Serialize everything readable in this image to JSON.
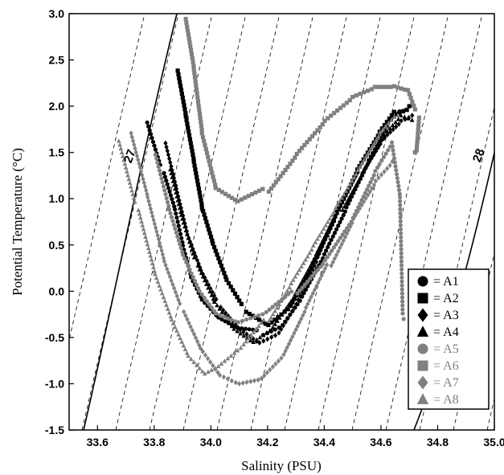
{
  "chart_data": {
    "type": "scatter",
    "title": "",
    "xlabel": "Salinity (PSU)",
    "ylabel": "Potential Temperature (°C)",
    "xlim": [
      33.5,
      35.0
    ],
    "ylim": [
      -1.5,
      3.0
    ],
    "x_ticks": [
      "33.6",
      "33.8",
      "34.0",
      "34.2",
      "34.4",
      "34.6",
      "34.8",
      "35.0"
    ],
    "y_ticks": [
      "3.0",
      "2.5",
      "2.0",
      "1.5",
      "1.0",
      "0.5",
      "0.0",
      "-0.5",
      "-1.0",
      "-1.5"
    ],
    "isopycnal_labels": [
      "27",
      "28"
    ],
    "legend_placement": "lower-right",
    "colors": {
      "black": "#000000",
      "gray": "#808080"
    },
    "series": [
      {
        "name": "A1",
        "marker": "circle",
        "color": "#000000",
        "x": [
          33.78,
          33.83,
          33.87,
          33.9,
          33.93,
          33.97,
          34.03,
          34.1,
          34.18,
          34.25,
          34.32,
          34.4,
          34.48,
          34.56,
          34.63,
          34.68
        ],
        "y": [
          1.8,
          1.3,
          0.9,
          0.5,
          0.15,
          -0.1,
          -0.3,
          -0.42,
          -0.45,
          -0.35,
          -0.05,
          0.4,
          0.9,
          1.4,
          1.8,
          1.95
        ]
      },
      {
        "name": "A2",
        "marker": "square",
        "color": "#000000",
        "x": [
          33.88,
          33.91,
          33.94,
          33.97,
          34.01,
          34.06,
          34.12,
          34.2,
          34.28,
          34.36,
          34.44,
          34.52,
          34.6,
          34.66,
          34.7
        ],
        "y": [
          2.4,
          1.9,
          1.4,
          0.9,
          0.5,
          0.1,
          -0.2,
          -0.35,
          -0.15,
          0.3,
          0.8,
          1.3,
          1.7,
          1.95,
          2.0
        ]
      },
      {
        "name": "A3",
        "marker": "diamond",
        "color": "#000000",
        "x": [
          33.84,
          33.88,
          33.92,
          33.97,
          34.03,
          34.1,
          34.17,
          34.24,
          34.31,
          34.38,
          34.45,
          34.53,
          34.6,
          34.67,
          34.71
        ],
        "y": [
          1.6,
          1.1,
          0.6,
          0.2,
          -0.15,
          -0.4,
          -0.55,
          -0.45,
          -0.1,
          0.35,
          0.85,
          1.3,
          1.65,
          1.85,
          1.9
        ]
      },
      {
        "name": "A4",
        "marker": "triangle",
        "color": "#000000",
        "x": [
          33.86,
          33.9,
          33.95,
          34.01,
          34.08,
          34.15,
          34.22,
          34.3,
          34.38,
          34.46,
          34.54,
          34.61,
          34.67,
          34.71
        ],
        "y": [
          1.3,
          0.8,
          0.3,
          -0.1,
          -0.4,
          -0.55,
          -0.4,
          -0.05,
          0.4,
          0.9,
          1.35,
          1.7,
          1.9,
          1.85
        ]
      },
      {
        "name": "A5",
        "marker": "circle",
        "color": "#808080",
        "x": [
          33.8,
          33.85,
          33.9,
          33.96,
          34.02,
          34.1,
          34.2,
          34.3,
          34.4,
          34.5,
          34.58,
          34.64,
          34.67,
          34.68
        ],
        "y": [
          1.5,
          0.9,
          0.4,
          0.0,
          -0.25,
          -0.35,
          -0.25,
          0.0,
          0.35,
          0.8,
          1.3,
          1.6,
          1.0,
          -0.3
        ]
      },
      {
        "name": "A6",
        "marker": "square",
        "color": "#808080",
        "x": [
          33.91,
          33.94,
          33.97,
          34.02,
          34.1,
          34.2,
          34.3,
          34.4,
          34.5,
          34.58,
          34.65,
          34.7,
          34.73,
          34.72
        ],
        "y": [
          2.95,
          2.4,
          1.7,
          1.1,
          0.95,
          1.1,
          1.5,
          1.85,
          2.1,
          2.2,
          2.2,
          2.15,
          1.9,
          1.5
        ]
      },
      {
        "name": "A7",
        "marker": "diamond",
        "color": "#808080",
        "x": [
          33.72,
          33.78,
          33.84,
          33.9,
          33.96,
          34.03,
          34.1,
          34.18,
          34.26,
          34.34,
          34.42,
          34.5,
          34.58,
          34.64
        ],
        "y": [
          1.7,
          1.0,
          0.3,
          -0.2,
          -0.6,
          -0.9,
          -1.0,
          -0.95,
          -0.7,
          -0.2,
          0.3,
          0.8,
          1.2,
          1.4
        ]
      },
      {
        "name": "A8",
        "marker": "triangle",
        "color": "#808080",
        "x": [
          33.68,
          33.74,
          33.8,
          33.86,
          33.92,
          33.98,
          34.04,
          34.12,
          34.2,
          34.28,
          34.36,
          34.44,
          34.52,
          34.6,
          34.66
        ],
        "y": [
          1.6,
          0.9,
          0.2,
          -0.3,
          -0.7,
          -0.9,
          -0.8,
          -0.6,
          -0.3,
          0.1,
          0.5,
          0.9,
          1.3,
          1.7,
          1.9
        ]
      }
    ]
  }
}
